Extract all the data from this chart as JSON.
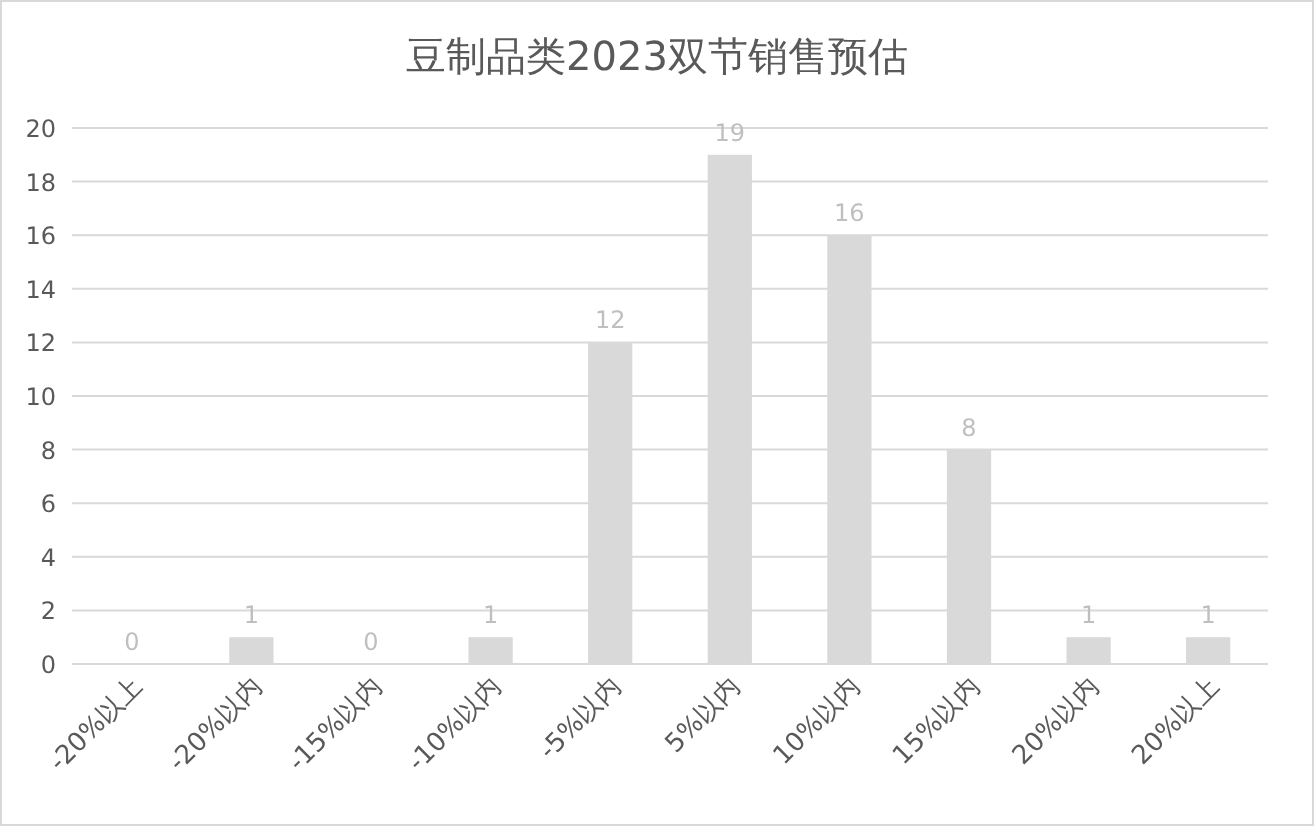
{
  "chart_data": {
    "type": "bar",
    "title": "豆制品类2023双节销售预估",
    "categories": [
      "-20%以上",
      "-20%以内",
      "-15%以内",
      "-10%以内",
      "-5%以内",
      "5%以内",
      "10%以内",
      "15%以内",
      "20%以内",
      "20%以上"
    ],
    "values": [
      0,
      1,
      0,
      1,
      12,
      19,
      16,
      8,
      1,
      1
    ],
    "color": "#d9d9d9",
    "ylim": [
      0,
      20
    ],
    "yticks": [
      0,
      2,
      4,
      6,
      8,
      10,
      12,
      14,
      16,
      18,
      20
    ],
    "grid": "y",
    "data_labels": true
  }
}
